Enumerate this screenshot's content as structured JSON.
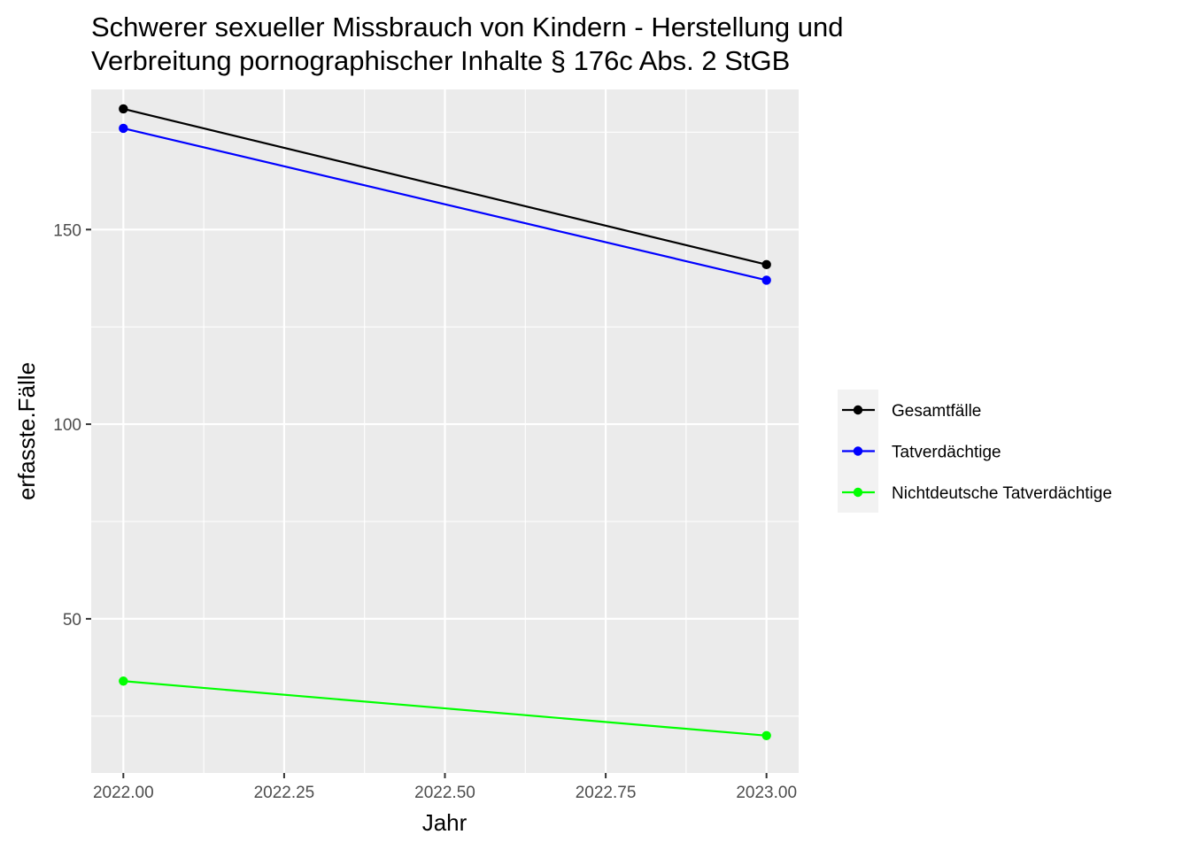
{
  "chart_data": {
    "type": "line",
    "title": [
      "Schwerer sexueller Missbrauch von Kindern - Herstellung und",
      "Verbreitung pornographischer Inhalte § 176c Abs. 2 StGB"
    ],
    "xlabel": "Jahr",
    "ylabel": "erfasste.Fälle",
    "xlim": [
      2021.95,
      2023.05
    ],
    "ylim": [
      10.4,
      186
    ],
    "x_ticks": [
      2022.0,
      2022.25,
      2022.5,
      2022.75,
      2023.0
    ],
    "x_tick_labels": [
      "2022.00",
      "2022.25",
      "2022.50",
      "2022.75",
      "2023.00"
    ],
    "y_ticks": [
      50,
      100,
      150
    ],
    "y_tick_labels": [
      "50",
      "100",
      "150"
    ],
    "grid": true,
    "legend_position": "right",
    "x": [
      2022,
      2023
    ],
    "series": [
      {
        "name": "Gesamtfälle",
        "values": [
          181,
          141
        ],
        "color": "#000000"
      },
      {
        "name": "Tatverdächtige",
        "values": [
          176,
          137
        ],
        "color": "#0000ff"
      },
      {
        "name": "Nichtdeutsche Tatverdächtige",
        "values": [
          34,
          20
        ],
        "color": "#00ff00"
      }
    ]
  }
}
